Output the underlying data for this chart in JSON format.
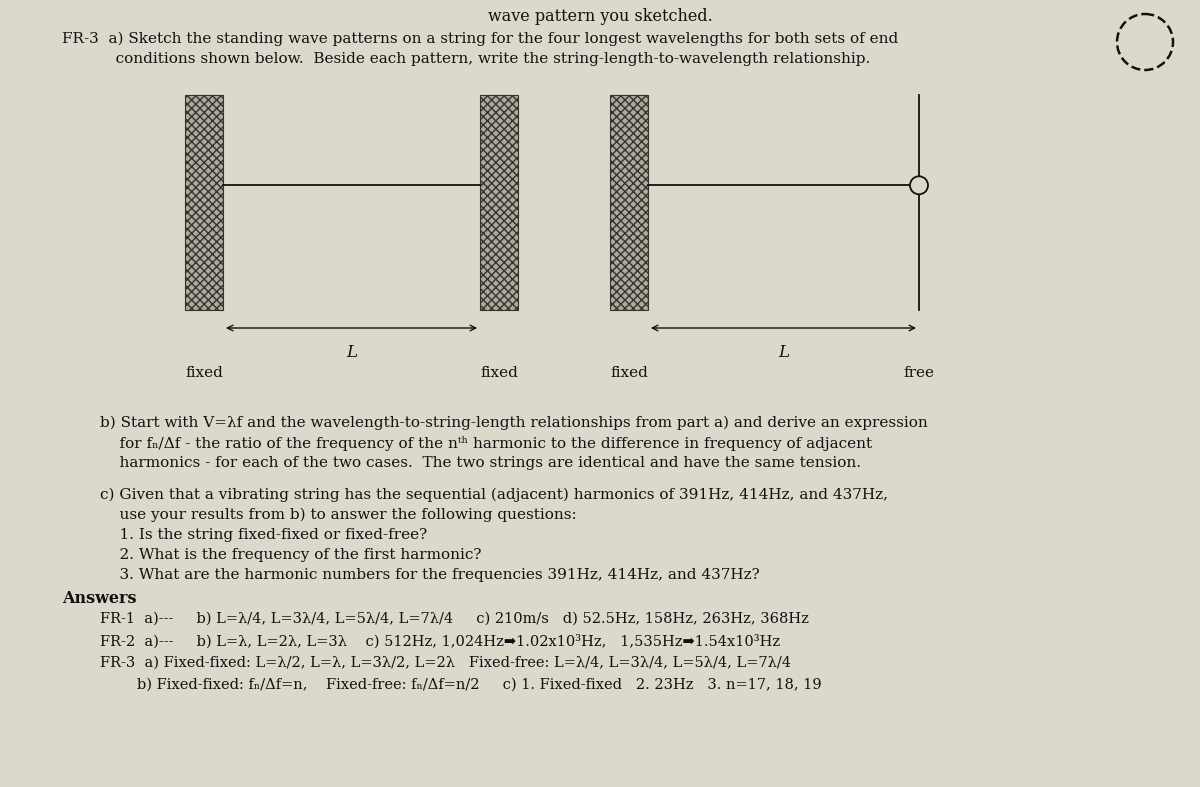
{
  "bg_color": "#ddd8cc",
  "text_color": "#111111",
  "title_top": "wave pattern you sketched.",
  "fr3_a_line1": "FR-3  a) Sketch the standing wave patterns on a string for the four longest wavelengths for both sets of end",
  "fr3_a_line2": "           conditions shown below.  Beside each pattern, write the string-length-to-wavelength relationship.",
  "b_line1": "b) Start with V=λf and the wavelength-to-string-length relationships from part a) and derive an expression",
  "b_line2": "    for fₙ/Δf - the ratio of the frequency of the nᵗʰ harmonic to the difference in frequency of adjacent",
  "b_line3": "    harmonics - for each of the two cases.  The two strings are identical and have the same tension.",
  "c_line1": "c) Given that a vibrating string has the sequential (adjacent) harmonics of 391Hz, 414Hz, and 437Hz,",
  "c_line2": "    use your results from b) to answer the following questions:",
  "c_line3": "    1. Is the string fixed-fixed or fixed-free?",
  "c_line4": "    2. What is the frequency of the first harmonic?",
  "c_line5": "    3. What are the harmonic numbers for the frequencies 391Hz, 414Hz, and 437Hz?",
  "answers_header": "Answers",
  "fr1_ans": "FR-1  a)---     b) L=λ/4, L=3λ/4, L=5λ/4, L=7λ/4     c) 210m/s   d) 52.5Hz, 158Hz, 263Hz, 368Hz",
  "fr2_ans": "FR-2  a)---     b) L=λ, L=2λ, L=3λ    c) 512Hz, 1,024Hz➡1.02x10³Hz,   1,535Hz➡1.54x10³Hz",
  "fr3_ans_a": "FR-3  a) Fixed-fixed: L=λ/2, L=λ, L=3λ/2, L=2λ   Fixed-free: L=λ/4, L=3λ/4, L=5λ/4, L=7λ/4",
  "fr3_ans_b": "        b) Fixed-fixed: fₙ/Δf=n,    Fixed-free: fₙ/Δf=n/2     c) 1. Fixed-fixed   2. 23Hz   3. n=17, 18, 19"
}
